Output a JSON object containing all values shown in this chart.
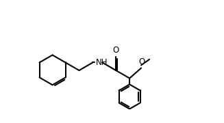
{
  "line_color": "#000000",
  "bg_color": "#ffffff",
  "line_width": 1.5,
  "font_size": 8.5,
  "fig_width": 3.27,
  "fig_height": 1.8,
  "dpi": 100,
  "xlim": [
    0,
    11
  ],
  "ylim": [
    -0.5,
    5.5
  ]
}
